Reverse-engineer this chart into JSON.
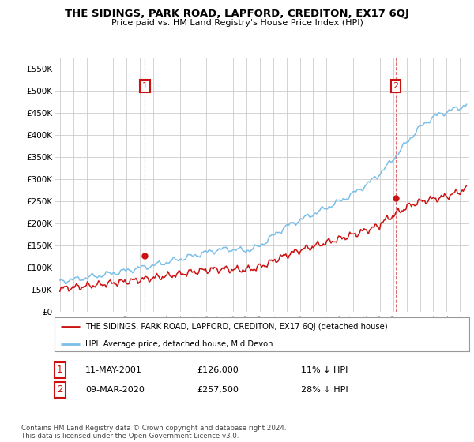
{
  "title": "THE SIDINGS, PARK ROAD, LAPFORD, CREDITON, EX17 6QJ",
  "subtitle": "Price paid vs. HM Land Registry's House Price Index (HPI)",
  "ylim": [
    0,
    575000
  ],
  "yticks": [
    0,
    50000,
    100000,
    150000,
    200000,
    250000,
    300000,
    350000,
    400000,
    450000,
    500000,
    550000
  ],
  "ytick_labels": [
    "£0",
    "£50K",
    "£100K",
    "£150K",
    "£200K",
    "£250K",
    "£300K",
    "£350K",
    "£400K",
    "£450K",
    "£500K",
    "£550K"
  ],
  "hpi_color": "#7bbfe8",
  "price_color": "#cc1111",
  "marker1_t": 2001.37,
  "marker2_t": 2020.19,
  "marker1_price": 126000,
  "marker2_price": 257500,
  "legend_label1": "THE SIDINGS, PARK ROAD, LAPFORD, CREDITON, EX17 6QJ (detached house)",
  "legend_label2": "HPI: Average price, detached house, Mid Devon",
  "note1_num": "1",
  "note1_date": "11-MAY-2001",
  "note1_price": "£126,000",
  "note1_hpi": "11% ↓ HPI",
  "note2_num": "2",
  "note2_date": "09-MAR-2020",
  "note2_price": "£257,500",
  "note2_hpi": "28% ↓ HPI",
  "footer": "Contains HM Land Registry data © Crown copyright and database right 2024.\nThis data is licensed under the Open Government Licence v3.0.",
  "background_color": "#ffffff",
  "grid_color": "#cccccc"
}
